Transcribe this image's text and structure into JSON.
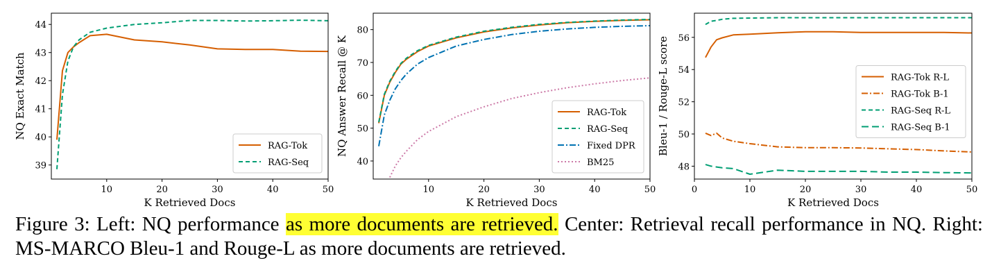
{
  "chart_data": [
    {
      "type": "line",
      "xlabel": "K Retrieved Docs",
      "ylabel": "NQ Exact Match",
      "xlim": [
        0,
        50
      ],
      "ylim": [
        38.5,
        44.4
      ],
      "xticks": [
        10,
        20,
        30,
        40,
        50
      ],
      "yticks": [
        39,
        40,
        41,
        42,
        43,
        44
      ],
      "grid": false,
      "legend_position": "bottom-right",
      "series": [
        {
          "name": "RAG-Tok",
          "color": "#d55e00",
          "dash": "solid",
          "x": [
            1,
            2,
            3,
            4,
            5,
            7,
            10,
            15,
            20,
            25,
            30,
            35,
            40,
            45,
            50
          ],
          "y": [
            39.9,
            42.35,
            43.0,
            43.2,
            43.35,
            43.6,
            43.65,
            43.45,
            43.38,
            43.27,
            43.13,
            43.11,
            43.11,
            43.05,
            43.04
          ]
        },
        {
          "name": "RAG-Seq",
          "color": "#009e73",
          "dash": "6,4",
          "x": [
            1,
            2,
            3,
            4,
            5,
            7,
            10,
            15,
            20,
            25,
            30,
            35,
            40,
            45,
            50
          ],
          "y": [
            38.85,
            41.5,
            42.7,
            43.2,
            43.45,
            43.72,
            43.87,
            44.0,
            44.06,
            44.14,
            44.14,
            44.12,
            44.13,
            44.15,
            44.13
          ]
        }
      ]
    },
    {
      "type": "line",
      "xlabel": "K Retrieved Docs",
      "ylabel": "NQ Answer Recall @ K",
      "xlim": [
        0,
        50
      ],
      "ylim": [
        34.5,
        85
      ],
      "xticks": [
        10,
        20,
        30,
        40,
        50
      ],
      "yticks": [
        40,
        50,
        60,
        70,
        80
      ],
      "grid": false,
      "legend_position": "bottom-right",
      "series": [
        {
          "name": "RAG-Tok",
          "color": "#d55e00",
          "dash": "solid",
          "x": [
            1,
            2,
            3,
            4,
            5,
            6,
            8,
            10,
            15,
            20,
            25,
            30,
            35,
            40,
            45,
            50
          ],
          "y": [
            51.5,
            60,
            64,
            67,
            69.5,
            71,
            73.3,
            75,
            77.5,
            79.3,
            80.5,
            81.4,
            82.1,
            82.5,
            82.8,
            83
          ]
        },
        {
          "name": "RAG-Seq",
          "color": "#009e73",
          "dash": "6,4",
          "x": [
            1,
            2,
            3,
            4,
            5,
            6,
            8,
            10,
            15,
            20,
            25,
            30,
            35,
            40,
            45,
            50
          ],
          "y": [
            51.8,
            60.3,
            64.3,
            67.3,
            69.7,
            71.3,
            73.6,
            75.2,
            77.7,
            79.5,
            80.7,
            81.6,
            82.2,
            82.6,
            82.9,
            83.1
          ]
        },
        {
          "name": "Fixed DPR",
          "color": "#0072b2",
          "dash": "9,3,2,3",
          "x": [
            1,
            2,
            3,
            4,
            5,
            6,
            8,
            10,
            15,
            20,
            25,
            30,
            35,
            40,
            45,
            50
          ],
          "y": [
            44.5,
            54,
            58.5,
            62,
            64.5,
            66.5,
            69.5,
            71.5,
            75,
            77,
            78.5,
            79.5,
            80.2,
            80.7,
            81,
            81.2
          ]
        },
        {
          "name": "BM25",
          "color": "#cc79a7",
          "dash": "2,3",
          "x": [
            3,
            4,
            5,
            6,
            8,
            10,
            15,
            20,
            25,
            30,
            35,
            40,
            45,
            50
          ],
          "y": [
            35,
            38.5,
            41,
            43,
            46.5,
            49,
            53.5,
            56.5,
            59,
            60.8,
            62.3,
            63.5,
            64.5,
            65.3
          ]
        }
      ]
    },
    {
      "type": "line",
      "xlabel": "K Retrieved Docs",
      "ylabel": "Bleu-1 / Rouge-L score",
      "xlim": [
        0,
        50
      ],
      "ylim": [
        47.2,
        57.5
      ],
      "xticks": [
        0,
        10,
        20,
        30,
        40,
        50
      ],
      "yticks": [
        48,
        50,
        52,
        54,
        56
      ],
      "grid": false,
      "legend_position": "center-right",
      "series": [
        {
          "name": "RAG-Tok R-L",
          "color": "#d55e00",
          "dash": "solid",
          "x": [
            2,
            3,
            4,
            5,
            7,
            10,
            15,
            20,
            25,
            30,
            35,
            40,
            45,
            50
          ],
          "y": [
            54.75,
            55.4,
            55.85,
            55.97,
            56.15,
            56.2,
            56.28,
            56.35,
            56.35,
            56.3,
            56.3,
            56.3,
            56.3,
            56.27
          ]
        },
        {
          "name": "RAG-Tok B-1",
          "color": "#d55e00",
          "dash": "9,3,2,3",
          "x": [
            2,
            3,
            4,
            5,
            7,
            10,
            15,
            20,
            25,
            30,
            35,
            40,
            45,
            50
          ],
          "y": [
            50.05,
            49.9,
            50.05,
            49.75,
            49.55,
            49.4,
            49.2,
            49.15,
            49.15,
            49.13,
            49.08,
            49.03,
            48.95,
            48.88
          ]
        },
        {
          "name": "RAG-Seq R-L",
          "color": "#009e73",
          "dash": "6,4",
          "x": [
            2,
            3,
            4,
            5,
            7,
            10,
            15,
            20,
            25,
            30,
            35,
            40,
            45,
            50
          ],
          "y": [
            56.8,
            57.0,
            57.05,
            57.12,
            57.18,
            57.2,
            57.22,
            57.22,
            57.22,
            57.22,
            57.22,
            57.22,
            57.22,
            57.22
          ]
        },
        {
          "name": "RAG-Seq B-1",
          "color": "#009e73",
          "dash": "10,5",
          "x": [
            2,
            3,
            4,
            5,
            7,
            10,
            11,
            15,
            20,
            25,
            30,
            35,
            40,
            45,
            50
          ],
          "y": [
            48.1,
            48.0,
            47.95,
            47.9,
            47.85,
            47.5,
            47.55,
            47.75,
            47.68,
            47.68,
            47.68,
            47.63,
            47.63,
            47.6,
            47.58
          ]
        }
      ]
    }
  ],
  "caption": {
    "part1": "Figure 3: Left: NQ performance ",
    "highlight": "as more documents are retrieved.",
    "part2": " Center: Retrieval recall performance in NQ. Right: MS-MARCO Bleu-1 and Rouge-L as more documents are retrieved."
  }
}
